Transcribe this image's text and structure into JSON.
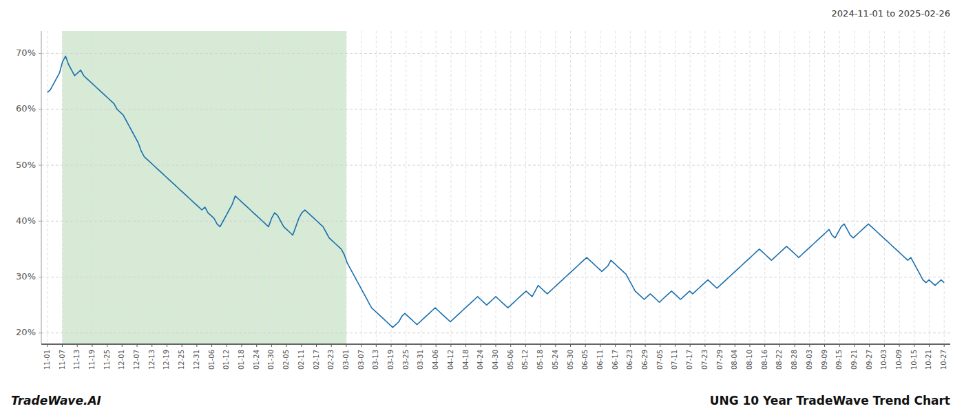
{
  "chart_data": {
    "type": "line",
    "title": "UNG 10 Year TradeWave Trend Chart",
    "subtitle": "2024-11-01 to 2025-02-26",
    "annotations": [
      "TradeWave.AI"
    ],
    "color": "#1a6fad",
    "grid": true,
    "highlight": {
      "start": "11-07",
      "end": "03-01",
      "color": "#d6ead6"
    },
    "ylim": [
      18,
      74
    ],
    "yticks": [
      {
        "value": 20,
        "label": "20%"
      },
      {
        "value": 30,
        "label": "30%"
      },
      {
        "value": 40,
        "label": "40%"
      },
      {
        "value": 50,
        "label": "50%"
      },
      {
        "value": 60,
        "label": "60%"
      },
      {
        "value": 70,
        "label": "70%"
      }
    ],
    "xlim": [
      -2,
      298
    ],
    "xticks": [
      {
        "value": 0,
        "label": "11-01"
      },
      {
        "value": 4.933333,
        "label": "11-07"
      },
      {
        "value": 9.866667,
        "label": "11-13"
      },
      {
        "value": 14.8,
        "label": "11-19"
      },
      {
        "value": 19.733333,
        "label": "11-25"
      },
      {
        "value": 24.666667,
        "label": "12-01"
      },
      {
        "value": 29.6,
        "label": "12-07"
      },
      {
        "value": 34.533333,
        "label": "12-13"
      },
      {
        "value": 39.466667,
        "label": "12-19"
      },
      {
        "value": 44.4,
        "label": "12-25"
      },
      {
        "value": 49.333333,
        "label": "12-31"
      },
      {
        "value": 54.266667,
        "label": "01-06"
      },
      {
        "value": 59.2,
        "label": "01-12"
      },
      {
        "value": 64.133333,
        "label": "01-18"
      },
      {
        "value": 69.066667,
        "label": "01-24"
      },
      {
        "value": 74,
        "label": "01-30"
      },
      {
        "value": 78.933333,
        "label": "02-05"
      },
      {
        "value": 83.866667,
        "label": "02-11"
      },
      {
        "value": 88.8,
        "label": "02-17"
      },
      {
        "value": 93.733333,
        "label": "02-23"
      },
      {
        "value": 98.666667,
        "label": "03-01"
      },
      {
        "value": 103.6,
        "label": "03-07"
      },
      {
        "value": 108.533333,
        "label": "03-13"
      },
      {
        "value": 113.466667,
        "label": "03-19"
      },
      {
        "value": 118.4,
        "label": "03-25"
      },
      {
        "value": 123.333333,
        "label": "03-31"
      },
      {
        "value": 128.266667,
        "label": "04-06"
      },
      {
        "value": 133.2,
        "label": "04-12"
      },
      {
        "value": 138.133333,
        "label": "04-18"
      },
      {
        "value": 143.066667,
        "label": "04-24"
      },
      {
        "value": 148,
        "label": "04-30"
      },
      {
        "value": 152.933333,
        "label": "05-06"
      },
      {
        "value": 157.866667,
        "label": "05-12"
      },
      {
        "value": 162.8,
        "label": "05-18"
      },
      {
        "value": 167.733333,
        "label": "05-24"
      },
      {
        "value": 172.666667,
        "label": "05-30"
      },
      {
        "value": 177.6,
        "label": "06-05"
      },
      {
        "value": 182.533333,
        "label": "06-11"
      },
      {
        "value": 187.466667,
        "label": "06-17"
      },
      {
        "value": 192.4,
        "label": "06-23"
      },
      {
        "value": 197.333333,
        "label": "06-29"
      },
      {
        "value": 202.266667,
        "label": "07-05"
      },
      {
        "value": 207.2,
        "label": "07-11"
      },
      {
        "value": 212.133333,
        "label": "07-17"
      },
      {
        "value": 217.066667,
        "label": "07-23"
      },
      {
        "value": 222,
        "label": "07-29"
      },
      {
        "value": 226.933333,
        "label": "08-04"
      },
      {
        "value": 231.866667,
        "label": "08-10"
      },
      {
        "value": 236.8,
        "label": "08-16"
      },
      {
        "value": 241.733333,
        "label": "08-22"
      },
      {
        "value": 246.666667,
        "label": "08-28"
      },
      {
        "value": 251.6,
        "label": "09-03"
      },
      {
        "value": 256.533333,
        "label": "09-09"
      },
      {
        "value": 261.466667,
        "label": "09-15"
      },
      {
        "value": 266.4,
        "label": "09-21"
      },
      {
        "value": 271.333333,
        "label": "09-27"
      },
      {
        "value": 276.266667,
        "label": "10-03"
      },
      {
        "value": 281.2,
        "label": "10-09"
      },
      {
        "value": 286.133333,
        "label": "10-15"
      },
      {
        "value": 291.066667,
        "label": "10-21"
      },
      {
        "value": 296,
        "label": "10-27"
      }
    ],
    "values": [
      63.0,
      63.5,
      64.5,
      65.5,
      66.5,
      68.5,
      69.5,
      68.0,
      67.0,
      66.0,
      66.5,
      67.0,
      66.0,
      65.5,
      65.0,
      64.5,
      64.0,
      63.5,
      63.0,
      62.5,
      62.0,
      61.5,
      61.0,
      60.0,
      59.5,
      59.0,
      58.0,
      57.0,
      56.0,
      55.0,
      54.0,
      52.5,
      51.5,
      51.0,
      50.5,
      50.0,
      49.5,
      49.0,
      48.5,
      48.0,
      47.5,
      47.0,
      46.5,
      46.0,
      45.5,
      45.0,
      44.5,
      44.0,
      43.5,
      43.0,
      42.5,
      42.0,
      42.5,
      41.5,
      41.0,
      40.5,
      39.5,
      39.0,
      40.0,
      41.0,
      42.0,
      43.0,
      44.5,
      44.0,
      43.5,
      43.0,
      42.5,
      42.0,
      41.5,
      41.0,
      40.5,
      40.0,
      39.5,
      39.0,
      40.5,
      41.5,
      41.0,
      40.0,
      39.0,
      38.5,
      38.0,
      37.5,
      39.0,
      40.5,
      41.5,
      42.0,
      41.5,
      41.0,
      40.5,
      40.0,
      39.5,
      39.0,
      38.0,
      37.0,
      36.5,
      36.0,
      35.5,
      35.0,
      34.0,
      32.5,
      31.5,
      30.5,
      29.5,
      28.5,
      27.5,
      26.5,
      25.5,
      24.5,
      24.0,
      23.5,
      23.0,
      22.5,
      22.0,
      21.5,
      21.0,
      21.5,
      22.0,
      23.0,
      23.5,
      23.0,
      22.5,
      22.0,
      21.5,
      22.0,
      22.5,
      23.0,
      23.5,
      24.0,
      24.5,
      24.0,
      23.5,
      23.0,
      22.5,
      22.0,
      22.5,
      23.0,
      23.5,
      24.0,
      24.5,
      25.0,
      25.5,
      26.0,
      26.5,
      26.0,
      25.5,
      25.0,
      25.5,
      26.0,
      26.5,
      26.0,
      25.5,
      25.0,
      24.5,
      25.0,
      25.5,
      26.0,
      26.5,
      27.0,
      27.5,
      27.0,
      26.5,
      27.5,
      28.5,
      28.0,
      27.5,
      27.0,
      27.5,
      28.0,
      28.5,
      29.0,
      29.5,
      30.0,
      30.5,
      31.0,
      31.5,
      32.0,
      32.5,
      33.0,
      33.5,
      33.0,
      32.5,
      32.0,
      31.5,
      31.0,
      31.5,
      32.0,
      33.0,
      32.5,
      32.0,
      31.5,
      31.0,
      30.5,
      29.5,
      28.5,
      27.5,
      27.0,
      26.5,
      26.0,
      26.5,
      27.0,
      26.5,
      26.0,
      25.5,
      26.0,
      26.5,
      27.0,
      27.5,
      27.0,
      26.5,
      26.0,
      26.5,
      27.0,
      27.5,
      27.0,
      27.5,
      28.0,
      28.5,
      29.0,
      29.5,
      29.0,
      28.5,
      28.0,
      28.5,
      29.0,
      29.5,
      30.0,
      30.5,
      31.0,
      31.5,
      32.0,
      32.5,
      33.0,
      33.5,
      34.0,
      34.5,
      35.0,
      34.5,
      34.0,
      33.5,
      33.0,
      33.5,
      34.0,
      34.5,
      35.0,
      35.5,
      35.0,
      34.5,
      34.0,
      33.5,
      34.0,
      34.5,
      35.0,
      35.5,
      36.0,
      36.5,
      37.0,
      37.5,
      38.0,
      38.5,
      37.5,
      37.0,
      38.0,
      39.0,
      39.5,
      38.5,
      37.5,
      37.0,
      37.5,
      38.0,
      38.5,
      39.0,
      39.5,
      39.0,
      38.5,
      38.0,
      37.5,
      37.0,
      36.5,
      36.0,
      35.5,
      35.0,
      34.5,
      34.0,
      33.5,
      33.0,
      33.5,
      32.5,
      31.5,
      30.5,
      29.5,
      29.0,
      29.5,
      29.0,
      28.5,
      29.0,
      29.5,
      29.0
    ]
  }
}
